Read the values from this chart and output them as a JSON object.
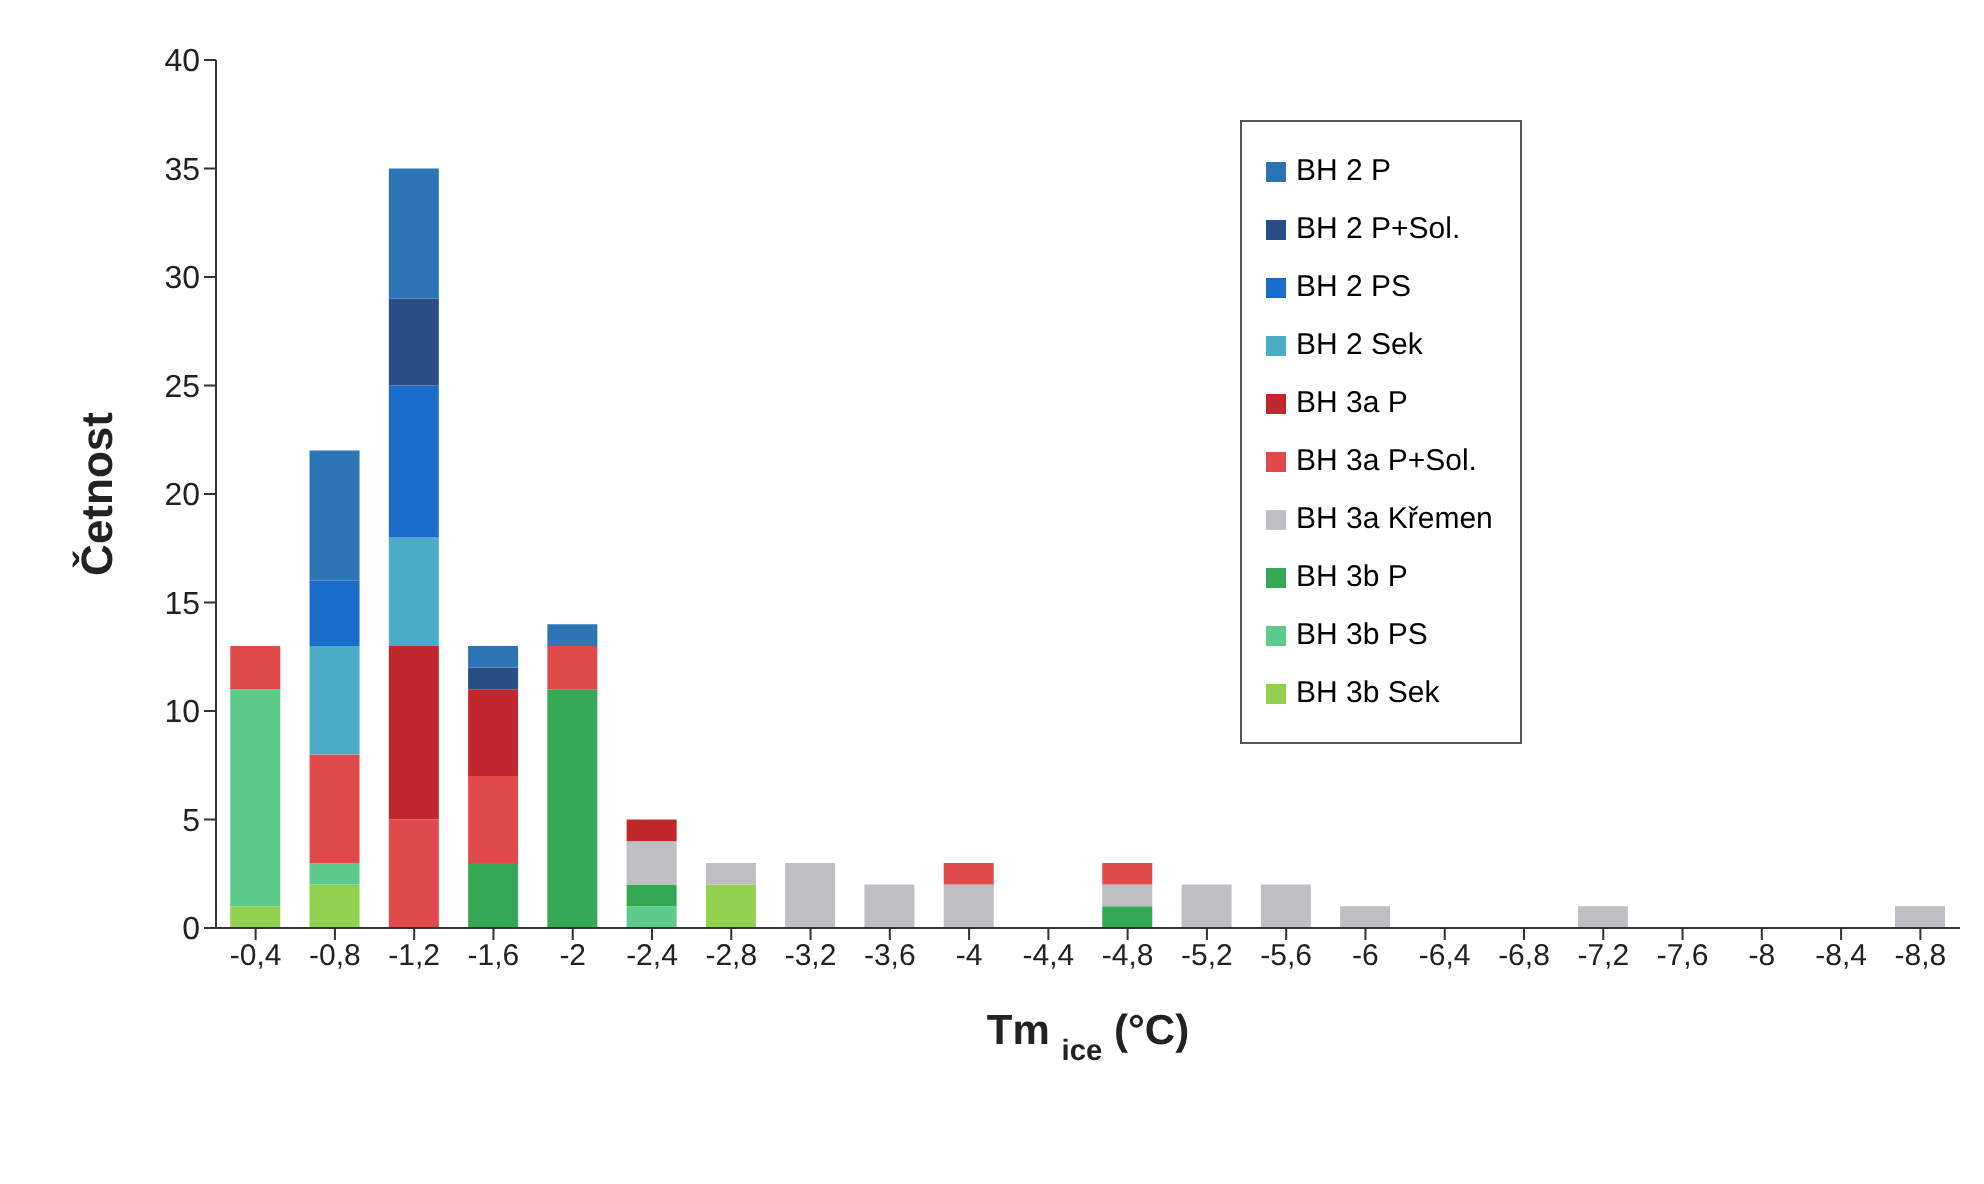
{
  "chart_data": {
    "type": "bar",
    "stacked": true,
    "xlabel": "Tm $_{ice}$ (°C)",
    "ylabel": "Četnost",
    "categories": [
      "-0,4",
      "-0,8",
      "-1,2",
      "-1,6",
      "-2",
      "-2,4",
      "-2,8",
      "-3,2",
      "-3,6",
      "-4",
      "-4,4",
      "-4,8",
      "-5,2",
      "-5,6",
      "-6",
      "-6,4",
      "-6,8",
      "-7,2",
      "-7,6",
      "-8",
      "-8,4",
      "-8,8"
    ],
    "ylim": [
      0,
      40
    ],
    "yticks": [
      0,
      5,
      10,
      15,
      20,
      25,
      30,
      35,
      40
    ],
    "grid": false,
    "legend": "top right",
    "series": [
      {
        "name": "BH 3b Sek",
        "color": "#92d050",
        "values": [
          1,
          2,
          0,
          0,
          0,
          0,
          2,
          0,
          0,
          0,
          0,
          0,
          0,
          0,
          0,
          0,
          0,
          0,
          0,
          0,
          0,
          0
        ]
      },
      {
        "name": "BH 3b PS",
        "color": "#5ccb8c",
        "values": [
          10,
          1,
          0,
          0,
          0,
          1,
          0,
          0,
          0,
          0,
          0,
          0,
          0,
          0,
          0,
          0,
          0,
          0,
          0,
          0,
          0,
          0
        ]
      },
      {
        "name": "BH 3b P",
        "color": "#34a853",
        "values": [
          0,
          0,
          0,
          3,
          11,
          1,
          0,
          0,
          0,
          0,
          0,
          1,
          0,
          0,
          0,
          0,
          0,
          0,
          0,
          0,
          0,
          0
        ]
      },
      {
        "name": "BH 3a Křemen",
        "color": "#bfbfc3",
        "values": [
          0,
          0,
          0,
          0,
          0,
          2,
          1,
          3,
          2,
          2,
          0,
          1,
          2,
          2,
          1,
          0,
          0,
          1,
          0,
          0,
          0,
          1
        ]
      },
      {
        "name": "BH 3a P+Sol.",
        "color": "#e04a4a",
        "values": [
          2,
          5,
          5,
          4,
          2,
          0,
          0,
          0,
          0,
          1,
          0,
          1,
          0,
          0,
          0,
          0,
          0,
          0,
          0,
          0,
          0,
          0
        ]
      },
      {
        "name": "BH 3a P",
        "color": "#c0282d",
        "values": [
          0,
          0,
          8,
          4,
          0,
          1,
          0,
          0,
          0,
          0,
          0,
          0,
          0,
          0,
          0,
          0,
          0,
          0,
          0,
          0,
          0,
          0
        ]
      },
      {
        "name": "BH 2 Sek",
        "color": "#4bacc6",
        "values": [
          0,
          5,
          5,
          0,
          0,
          0,
          0,
          0,
          0,
          0,
          0,
          0,
          0,
          0,
          0,
          0,
          0,
          0,
          0,
          0,
          0,
          0
        ]
      },
      {
        "name": "BH 2 PS",
        "color": "#1a6ccc",
        "values": [
          0,
          3,
          7,
          0,
          0,
          0,
          0,
          0,
          0,
          0,
          0,
          0,
          0,
          0,
          0,
          0,
          0,
          0,
          0,
          0,
          0,
          0
        ]
      },
      {
        "name": "BH 2 P+Sol.",
        "color": "#284f85",
        "values": [
          0,
          0,
          4,
          1,
          0,
          0,
          0,
          0,
          0,
          0,
          0,
          0,
          0,
          0,
          0,
          0,
          0,
          0,
          0,
          0,
          0,
          0
        ]
      },
      {
        "name": "BH 2 P",
        "color": "#2e75b6",
        "values": [
          0,
          6,
          6,
          1,
          1,
          0,
          0,
          0,
          0,
          0,
          0,
          0,
          0,
          0,
          0,
          0,
          0,
          0,
          0,
          0,
          0,
          0
        ]
      }
    ]
  }
}
